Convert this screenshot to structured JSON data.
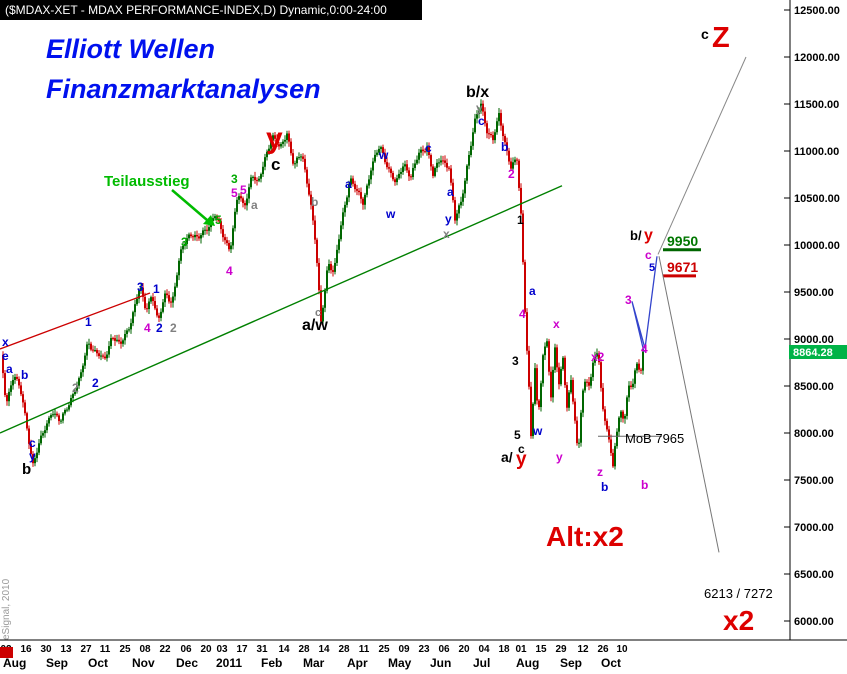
{
  "window": {
    "title": "($MDAX-XET - MDAX PERFORMANCE-INDEX,D) Dynamic,0:00-24:00"
  },
  "chart_data": {
    "type": "candlestick",
    "title": "($MDAX-XET - MDAX PERFORMANCE-INDEX,D) Dynamic,0:00-24:00",
    "instrument": "$MDAX-XET - MDAX PERFORMANCE-INDEX",
    "interval": "D",
    "session": "Dynamic,0:00-24:00",
    "watermark": "eSignal, 2010",
    "last_price": 8864.28,
    "last_price_label": "8864.28",
    "levels": {
      "target_upper": 9950,
      "target_lower": 9671,
      "mob": 7965,
      "mob_label": "MoB 7965",
      "alt_target_label": "6213 / 7272"
    },
    "colors": {
      "up": "#006600",
      "down": "#cc0000",
      "badge": "#00b347",
      "titlebar_bg": "#000000",
      "heading_blue": "#0011ee",
      "wave_blue": "#0000cc",
      "wave_magenta": "#cc00cc",
      "wave_gray": "#808080",
      "wave_green": "#00aa00",
      "wave_red": "#dd0000",
      "trend_green": "#008000",
      "trend_red": "#cc0000"
    },
    "y_axis": {
      "min": 6000,
      "max": 12500,
      "step": 500,
      "labels": [
        "12500.00",
        "12000.00",
        "11500.00",
        "11000.00",
        "10500.00",
        "10000.00",
        "9500.00",
        "9000.00",
        "8500.00",
        "8000.00",
        "7500.00",
        "7000.00",
        "6500.00",
        "6000.00"
      ]
    },
    "x_axis": {
      "dates": [
        [
          "02",
          6
        ],
        [
          "16",
          26
        ],
        [
          "30",
          46
        ],
        [
          "13",
          66
        ],
        [
          "27",
          86
        ],
        [
          "11",
          105
        ],
        [
          "25",
          125
        ],
        [
          "08",
          145
        ],
        [
          "22",
          165
        ],
        [
          "06",
          186
        ],
        [
          "20",
          206
        ],
        [
          "03",
          222
        ],
        [
          "17",
          242
        ],
        [
          "31",
          262
        ],
        [
          "14",
          284
        ],
        [
          "28",
          304
        ],
        [
          "14",
          324
        ],
        [
          "28",
          344
        ],
        [
          "11",
          364
        ],
        [
          "25",
          384
        ],
        [
          "09",
          404
        ],
        [
          "23",
          424
        ],
        [
          "06",
          444
        ],
        [
          "20",
          464
        ],
        [
          "04",
          484
        ],
        [
          "18",
          504
        ],
        [
          "01",
          521
        ],
        [
          "15",
          541
        ],
        [
          "29",
          561
        ],
        [
          "12",
          583
        ],
        [
          "26",
          603
        ],
        [
          "10",
          622
        ]
      ],
      "months": [
        [
          "Aug",
          3
        ],
        [
          "Sep",
          46
        ],
        [
          "Oct",
          88
        ],
        [
          "Nov",
          132
        ],
        [
          "Dec",
          176
        ],
        [
          "2011",
          216
        ],
        [
          "Feb",
          261
        ],
        [
          "Mar",
          303
        ],
        [
          "Apr",
          347
        ],
        [
          "May",
          388
        ],
        [
          "Jun",
          430
        ],
        [
          "Jul",
          473
        ],
        [
          "Aug",
          516
        ],
        [
          "Sep",
          560
        ],
        [
          "Oct",
          601
        ]
      ]
    },
    "price_path_anchors": [
      [
        0,
        8870
      ],
      [
        6,
        8300
      ],
      [
        14,
        8620
      ],
      [
        22,
        8350
      ],
      [
        33,
        7670
      ],
      [
        45,
        8060
      ],
      [
        52,
        8280
      ],
      [
        60,
        8120
      ],
      [
        70,
        8380
      ],
      [
        80,
        8560
      ],
      [
        88,
        8980
      ],
      [
        96,
        8820
      ],
      [
        104,
        8740
      ],
      [
        112,
        9030
      ],
      [
        120,
        8900
      ],
      [
        130,
        9180
      ],
      [
        140,
        9560
      ],
      [
        146,
        9340
      ],
      [
        152,
        9520
      ],
      [
        158,
        9170
      ],
      [
        166,
        9520
      ],
      [
        172,
        9380
      ],
      [
        182,
        9950
      ],
      [
        190,
        10120
      ],
      [
        198,
        10020
      ],
      [
        208,
        10200
      ],
      [
        215,
        10320
      ],
      [
        222,
        10130
      ],
      [
        230,
        9990
      ],
      [
        238,
        10560
      ],
      [
        244,
        10420
      ],
      [
        252,
        10780
      ],
      [
        258,
        10620
      ],
      [
        266,
        10960
      ],
      [
        272,
        11150
      ],
      [
        280,
        10980
      ],
      [
        287,
        11190
      ],
      [
        294,
        10820
      ],
      [
        302,
        10960
      ],
      [
        310,
        10540
      ],
      [
        316,
        9980
      ],
      [
        321,
        9180
      ],
      [
        328,
        9860
      ],
      [
        334,
        9720
      ],
      [
        342,
        10280
      ],
      [
        350,
        10720
      ],
      [
        357,
        10530
      ],
      [
        363,
        10430
      ],
      [
        371,
        10800
      ],
      [
        380,
        11020
      ],
      [
        388,
        10840
      ],
      [
        396,
        10640
      ],
      [
        404,
        10900
      ],
      [
        411,
        10760
      ],
      [
        419,
        10980
      ],
      [
        427,
        11080
      ],
      [
        433,
        10750
      ],
      [
        441,
        10900
      ],
      [
        449,
        10830
      ],
      [
        455,
        10230
      ],
      [
        461,
        10420
      ],
      [
        468,
        10900
      ],
      [
        475,
        11290
      ],
      [
        481,
        11500
      ],
      [
        487,
        11250
      ],
      [
        493,
        11130
      ],
      [
        499,
        11390
      ],
      [
        505,
        11130
      ],
      [
        511,
        10850
      ],
      [
        517,
        10900
      ],
      [
        521,
        10320
      ],
      [
        525,
        9330
      ],
      [
        529,
        8480
      ],
      [
        531,
        7950
      ],
      [
        535,
        8650
      ],
      [
        538,
        8090
      ],
      [
        543,
        8820
      ],
      [
        547,
        8980
      ],
      [
        551,
        8350
      ],
      [
        555,
        8870
      ],
      [
        559,
        8480
      ],
      [
        563,
        8820
      ],
      [
        567,
        8280
      ],
      [
        571,
        8580
      ],
      [
        575,
        8100
      ],
      [
        578,
        7750
      ],
      [
        582,
        8420
      ],
      [
        586,
        8640
      ],
      [
        590,
        8520
      ],
      [
        594,
        8820
      ],
      [
        598,
        8860
      ],
      [
        602,
        8380
      ],
      [
        606,
        8100
      ],
      [
        610,
        7900
      ],
      [
        613,
        7620
      ],
      [
        616,
        7900
      ],
      [
        620,
        8250
      ],
      [
        624,
        8100
      ],
      [
        628,
        8500
      ],
      [
        632,
        8420
      ],
      [
        636,
        8700
      ],
      [
        640,
        8600
      ],
      [
        644,
        8864
      ]
    ],
    "trendlines": [
      {
        "name": "rising-support-trendline",
        "color": "#008000",
        "width": 1.4,
        "points": [
          [
            0,
            8000
          ],
          [
            562,
            10630
          ]
        ]
      },
      {
        "name": "left-red-trendline",
        "color": "#cc0000",
        "width": 1.3,
        "points": [
          [
            0,
            8894
          ],
          [
            150,
            9489
          ]
        ]
      },
      {
        "name": "mob-7965-line",
        "color": "#666666",
        "width": 1,
        "points": [
          [
            598,
            7965
          ],
          [
            662,
            7965
          ]
        ]
      },
      {
        "name": "target-9950-bar",
        "color": "#006600",
        "width": 3,
        "points": [
          [
            663,
            9950
          ],
          [
            701,
            9950
          ]
        ]
      },
      {
        "name": "target-9671-bar",
        "color": "#cc0000",
        "width": 3,
        "points": [
          [
            663,
            9671
          ],
          [
            696,
            9671
          ]
        ]
      }
    ],
    "projections": [
      {
        "name": "blue-wave-projection",
        "color": "#3344cc",
        "width": 1.3,
        "points": [
          [
            644,
            8860
          ],
          [
            632,
            9400
          ],
          [
            645,
            8900
          ],
          [
            657,
            9880
          ]
        ]
      },
      {
        "name": "projection-to-z",
        "color": "#888888",
        "width": 1,
        "points": [
          [
            658,
            9900
          ],
          [
            746,
            12000
          ]
        ]
      },
      {
        "name": "projection-to-x2",
        "color": "#777777",
        "width": 1,
        "points": [
          [
            659,
            9880
          ],
          [
            719,
            6730
          ]
        ]
      }
    ],
    "arrow": {
      "name": "teilausstieg-arrow",
      "color": "#00bb00",
      "width": 2.5,
      "line": [
        [
          172,
          190
        ],
        [
          207,
          220
        ]
      ],
      "head": [
        [
          215,
          226
        ],
        [
          203,
          224
        ],
        [
          211,
          215
        ]
      ]
    },
    "annotations_format": [
      "text",
      "x",
      "y_baseline_px",
      "color",
      "font_px",
      "bold",
      "italic"
    ],
    "annotations": [
      [
        "Elliott Wellen",
        46,
        58,
        "#0011ee",
        27,
        1,
        1
      ],
      [
        "Finanzmarktanalysen",
        46,
        98,
        "#0011ee",
        27,
        1,
        1
      ],
      [
        "Teilausstieg",
        104,
        186,
        "#00bb00",
        15,
        1,
        0
      ],
      [
        "y",
        266,
        148,
        "#dd0000",
        30,
        1,
        0
      ],
      [
        "c",
        271,
        170,
        "#000000",
        17,
        1,
        0
      ],
      [
        "b/x",
        466,
        97,
        "#000000",
        16,
        1,
        0
      ],
      [
        "a/w",
        302,
        330,
        "#000000",
        16,
        1,
        0
      ],
      [
        "a/",
        501,
        462,
        "#000000",
        14,
        1,
        0
      ],
      [
        "y",
        516,
        465,
        "#dd0000",
        19,
        1,
        0
      ],
      [
        "b/",
        630,
        240,
        "#000000",
        13,
        1,
        0
      ],
      [
        "y",
        644,
        240,
        "#dd0000",
        16,
        1,
        0
      ],
      [
        "c",
        701,
        39,
        "#000000",
        14,
        1,
        0
      ],
      [
        "Z",
        712,
        47,
        "#dd0000",
        29,
        1,
        0
      ],
      [
        "Alt:x2",
        546,
        546,
        "#dd0000",
        28,
        1,
        0
      ],
      [
        "x2",
        723,
        630,
        "#dd0000",
        28,
        1,
        0
      ],
      [
        "6213 / 7272",
        704,
        598,
        "#000000",
        13,
        0,
        0
      ],
      [
        "MoB 7965",
        625,
        443,
        "#000000",
        13,
        0,
        0
      ],
      [
        "9950",
        667,
        246,
        "#007700",
        14,
        1,
        0
      ],
      [
        "9671",
        667,
        272,
        "#cc0000",
        14,
        1,
        0
      ],
      [
        "x",
        2,
        346,
        "#0000cc",
        12,
        1,
        0
      ],
      [
        "e",
        2,
        360,
        "#0000cc",
        12,
        1,
        0
      ],
      [
        "a",
        6,
        373,
        "#0000cc",
        12,
        1,
        0
      ],
      [
        "b",
        21,
        379,
        "#0000cc",
        12,
        1,
        0
      ],
      [
        "c",
        29,
        447,
        "#0000cc",
        12,
        1,
        0
      ],
      [
        "y",
        29,
        460,
        "#0000cc",
        12,
        1,
        0
      ],
      [
        "b",
        22,
        474,
        "#000000",
        15,
        1,
        0
      ],
      [
        "1",
        85,
        326,
        "#0000cc",
        12,
        1,
        0
      ],
      [
        "2",
        92,
        387,
        "#0000cc",
        12,
        1,
        0
      ],
      [
        "2",
        72,
        392,
        "#808080",
        12,
        1,
        0
      ],
      [
        "3",
        137,
        291,
        "#0000cc",
        12,
        1,
        0
      ],
      [
        "1",
        153,
        293,
        "#0000cc",
        12,
        1,
        0
      ],
      [
        "4",
        144,
        332,
        "#cc00cc",
        12,
        1,
        0
      ],
      [
        "2",
        156,
        332,
        "#0000cc",
        12,
        1,
        0
      ],
      [
        "2",
        170,
        332,
        "#808080",
        12,
        1,
        0
      ],
      [
        "3",
        181,
        246,
        "#00aa00",
        12,
        1,
        0
      ],
      [
        "5",
        215,
        224,
        "#00aa00",
        12,
        1,
        0
      ],
      [
        "3",
        231,
        183,
        "#00aa00",
        12,
        1,
        0
      ],
      [
        "5",
        231,
        197,
        "#cc00cc",
        12,
        1,
        0
      ],
      [
        "4",
        226,
        275,
        "#cc00cc",
        12,
        1,
        0
      ],
      [
        "5",
        240,
        194,
        "#cc00cc",
        12,
        1,
        0
      ],
      [
        "a",
        251,
        209,
        "#808080",
        12,
        1,
        0
      ],
      [
        "b",
        311,
        206,
        "#808080",
        12,
        1,
        0
      ],
      [
        "c",
        315,
        316,
        "#808080",
        11,
        1,
        0
      ],
      [
        "a",
        345,
        188,
        "#0000cc",
        12,
        1,
        0
      ],
      [
        "w",
        379,
        159,
        "#0000cc",
        12,
        1,
        0
      ],
      [
        "w",
        386,
        218,
        "#0000cc",
        12,
        1,
        0
      ],
      [
        "c",
        425,
        152,
        "#0000cc",
        12,
        1,
        0
      ],
      [
        "a",
        447,
        196,
        "#0000cc",
        12,
        1,
        0
      ],
      [
        "y",
        445,
        223,
        "#0000cc",
        12,
        1,
        0
      ],
      [
        "x",
        443,
        238,
        "#808080",
        12,
        1,
        0
      ],
      [
        "y",
        476,
        112,
        "#808080",
        12,
        1,
        0
      ],
      [
        "c",
        478,
        125,
        "#0000cc",
        12,
        1,
        0
      ],
      [
        "b",
        501,
        151,
        "#0000cc",
        12,
        1,
        0
      ],
      [
        "2",
        508,
        178,
        "#cc00cc",
        12,
        1,
        0
      ],
      [
        "1",
        517,
        224,
        "#000000",
        12,
        1,
        0
      ],
      [
        "4",
        519,
        318,
        "#cc00cc",
        12,
        1,
        0
      ],
      [
        "a",
        529,
        295,
        "#0000cc",
        12,
        1,
        0
      ],
      [
        "3",
        512,
        365,
        "#000000",
        12,
        1,
        0
      ],
      [
        "x",
        553,
        328,
        "#cc00cc",
        12,
        1,
        0
      ],
      [
        "5",
        514,
        439,
        "#000000",
        12,
        1,
        0
      ],
      [
        "c",
        518,
        453,
        "#000000",
        12,
        1,
        0
      ],
      [
        "w",
        533,
        435,
        "#0000cc",
        12,
        1,
        0
      ],
      [
        "y",
        556,
        461,
        "#cc00cc",
        12,
        1,
        0
      ],
      [
        "z",
        597,
        476,
        "#cc00cc",
        12,
        1,
        0
      ],
      [
        "b",
        601,
        491,
        "#0000cc",
        12,
        1,
        0
      ],
      [
        "x2",
        591,
        361,
        "#cc00cc",
        12,
        1,
        0
      ],
      [
        "b",
        641,
        489,
        "#cc00cc",
        12,
        1,
        0
      ],
      [
        "3",
        625,
        304,
        "#cc00cc",
        12,
        1,
        0
      ],
      [
        "4",
        641,
        353,
        "#cc00cc",
        12,
        1,
        0
      ],
      [
        "c",
        645,
        259,
        "#cc00cc",
        12,
        1,
        0
      ],
      [
        "5",
        649,
        271,
        "#0000cc",
        11,
        1,
        0
      ]
    ]
  }
}
